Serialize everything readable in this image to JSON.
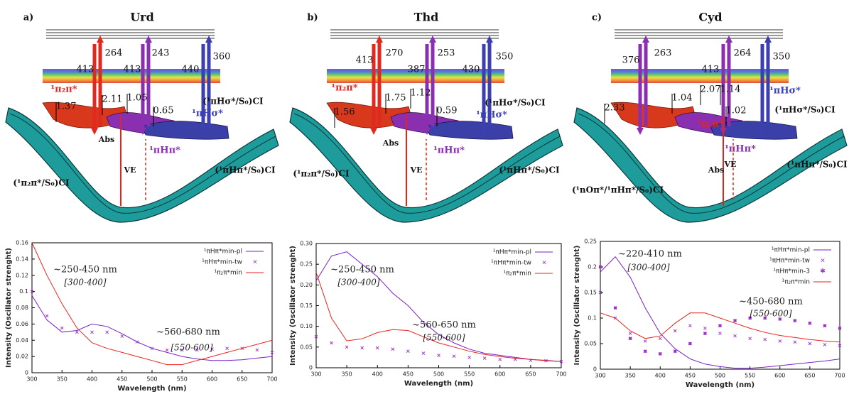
{
  "diagrams": [
    {
      "label": "a)",
      "title": "Urd",
      "wavelengths": [
        413,
        264,
        413,
        243,
        440,
        360
      ],
      "energies": [
        1.37,
        2.11,
        1.05,
        0.65
      ],
      "states": [
        "¹π₂π*",
        "¹πHσ*",
        "¹πHπ*"
      ],
      "abs": "Abs",
      "ve": "VE",
      "ci": [
        "(¹πHσ*/S₀)CI",
        "(¹π₂π*/S₀)CI",
        "(¹πHπ*/S₀)CI"
      ]
    },
    {
      "label": "b)",
      "title": "Thd",
      "wavelengths": [
        413,
        270,
        387,
        253,
        430,
        350
      ],
      "energies": [
        1.56,
        1.75,
        1.12,
        0.59
      ],
      "states": [
        "¹π₂π*",
        "¹πHσ*",
        "¹πHπ*"
      ],
      "abs": "Abs",
      "ve": "VE",
      "ci": [
        "(¹πHσ*/S₀)CI",
        "(¹π₂π*/S₀)CI",
        "(¹πHπ*/S₀)CI"
      ]
    },
    {
      "label": "c)",
      "title": "Cyd",
      "wavelengths": [
        376,
        263,
        413,
        264,
        350
      ],
      "energies": [
        2.33,
        1.04,
        2.07,
        1.14,
        1.02
      ],
      "states": [
        "¹π₂π*",
        "¹πHσ*",
        "¹πHπ*"
      ],
      "abs": "Abs",
      "ve": "VE",
      "ci": [
        "(¹πHσ*/S₀)CI",
        "(¹nOπ*/¹πHπ*/S₀)CI",
        "(¹πHπ*/S₀)CI"
      ]
    }
  ],
  "chart_data": [
    {
      "type": "line",
      "xlabel": "Wavelength (nm)",
      "ylabel": "Intensity (Oscillator strenght)",
      "x": [
        300,
        325,
        350,
        375,
        400,
        425,
        450,
        475,
        500,
        525,
        550,
        575,
        600,
        625,
        650,
        675,
        700
      ],
      "xlim": [
        300,
        700
      ],
      "xticks": [
        300,
        350,
        400,
        450,
        500,
        550,
        600,
        650,
        700
      ],
      "ylim": [
        0,
        0.16
      ],
      "yticks": [
        0,
        0.02,
        0.04,
        0.06,
        0.08,
        0.1,
        0.12,
        0.14,
        0.16
      ],
      "legend": "upper right",
      "annotations": [
        "~250-450 nm",
        "[300-400]",
        "~560-680 nm",
        "[550-600]"
      ],
      "series": [
        {
          "name": "¹πHπ*min-pl",
          "color": "#7a1fc7",
          "marker": "line",
          "values": [
            0.095,
            0.065,
            0.05,
            0.052,
            0.06,
            0.057,
            0.048,
            0.038,
            0.03,
            0.025,
            0.02,
            0.017,
            0.015,
            0.015,
            0.016,
            0.018,
            0.02
          ]
        },
        {
          "name": "¹πHπ*min-tw",
          "color": "#9b30c8",
          "marker": "cross",
          "values": [
            0.1,
            0.07,
            0.055,
            0.05,
            0.05,
            0.05,
            0.045,
            0.038,
            0.03,
            0.028,
            0.028,
            0.028,
            0.029,
            0.03,
            0.03,
            0.028,
            0.025
          ]
        },
        {
          "name": "¹π₂π*min",
          "color": "#e8231f",
          "marker": "line",
          "values": [
            0.16,
            0.12,
            0.085,
            0.055,
            0.037,
            0.03,
            0.025,
            0.02,
            0.015,
            0.01,
            0.01,
            0.015,
            0.02,
            0.025,
            0.03,
            0.035,
            0.04
          ]
        }
      ]
    },
    {
      "type": "line",
      "xlabel": "Wavelength (nm)",
      "ylabel": "Intensity (Oscillator strenght)",
      "x": [
        300,
        325,
        350,
        375,
        400,
        425,
        450,
        475,
        500,
        525,
        550,
        575,
        600,
        625,
        650,
        675,
        700
      ],
      "xlim": [
        300,
        700
      ],
      "xticks": [
        300,
        350,
        400,
        450,
        500,
        550,
        600,
        650,
        700
      ],
      "ylim": [
        0,
        0.3
      ],
      "yticks": [
        0,
        0.05,
        {
          "value": 0.1,
          "label": "0.10"
        },
        0.15,
        {
          "value": 0.2,
          "label": "0.20"
        },
        0.25,
        {
          "value": 0.3,
          "label": "0.30"
        }
      ],
      "legend": "upper right",
      "annotations": [
        "~250-450 nm",
        "[300-400]",
        "~560-650 nm",
        "[550-600]"
      ],
      "series": [
        {
          "name": "¹πHπ*min-pl",
          "color": "#7a1fc7",
          "marker": "line",
          "values": [
            0.21,
            0.27,
            0.28,
            0.25,
            0.22,
            0.18,
            0.15,
            0.11,
            0.08,
            0.06,
            0.045,
            0.035,
            0.03,
            0.025,
            0.02,
            0.018,
            0.015
          ]
        },
        {
          "name": "¹πHπ*min-tw",
          "color": "#9b30c8",
          "marker": "cross",
          "values": [
            0.075,
            0.06,
            0.05,
            0.048,
            0.048,
            0.045,
            0.04,
            0.035,
            0.03,
            0.028,
            0.025,
            0.023,
            0.02,
            0.02,
            0.018,
            0.017,
            0.015
          ]
        },
        {
          "name": "¹π₂π*min",
          "color": "#e8231f",
          "marker": "line",
          "values": [
            0.23,
            0.12,
            0.065,
            0.07,
            0.085,
            0.092,
            0.09,
            0.075,
            0.06,
            0.05,
            0.04,
            0.032,
            0.027,
            0.023,
            0.02,
            0.017,
            0.015
          ]
        }
      ]
    },
    {
      "type": "line",
      "xlabel": "Wavelength (nm)",
      "ylabel": "Intensity (Oscillator strenght)",
      "x": [
        300,
        325,
        350,
        375,
        400,
        425,
        450,
        475,
        500,
        525,
        550,
        575,
        600,
        625,
        650,
        675,
        700
      ],
      "xlim": [
        300,
        700
      ],
      "xticks": [
        300,
        350,
        400,
        450,
        500,
        550,
        600,
        650,
        700
      ],
      "ylim": [
        0,
        0.25
      ],
      "yticks": [
        0,
        0.05,
        0.1,
        0.15,
        0.2,
        0.25
      ],
      "legend": "upper right",
      "annotations": [
        "~220-410 nm",
        "[300-400]",
        "~450-680 nm",
        "[550-600]"
      ],
      "series": [
        {
          "name": "¹πHπ*min-pl",
          "color": "#7a1fc7",
          "marker": "line",
          "values": [
            0.19,
            0.22,
            0.18,
            0.12,
            0.07,
            0.04,
            0.02,
            0.01,
            0.005,
            0.002,
            0.002,
            0.004,
            0.007,
            0.01,
            0.013,
            0.016,
            0.02
          ]
        },
        {
          "name": "¹πHπ*min-tw",
          "color": "#9b30c8",
          "marker": "cross",
          "values": [
            0.15,
            0.1,
            0.07,
            0.055,
            0.06,
            0.075,
            0.085,
            0.08,
            0.07,
            0.065,
            0.06,
            0.058,
            0.055,
            0.053,
            0.05,
            0.048,
            0.046
          ]
        },
        {
          "name": "¹πHπ*min-3",
          "color": "#9b30c8",
          "marker": "star",
          "values": [
            0.2,
            0.12,
            0.06,
            0.035,
            0.03,
            0.035,
            0.05,
            0.07,
            0.085,
            0.095,
            0.1,
            0.1,
            0.098,
            0.095,
            0.09,
            0.085,
            0.08
          ]
        },
        {
          "name": "¹π₂π*min",
          "color": "#e8231f",
          "marker": "line",
          "values": [
            0.11,
            0.1,
            0.075,
            0.06,
            0.065,
            0.09,
            0.11,
            0.11,
            0.1,
            0.09,
            0.08,
            0.072,
            0.066,
            0.062,
            0.058,
            0.055,
            0.053
          ]
        }
      ]
    }
  ]
}
